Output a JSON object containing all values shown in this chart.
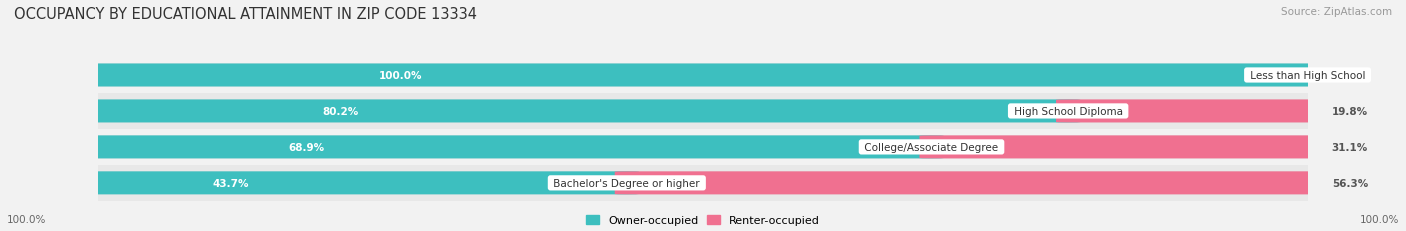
{
  "title": "OCCUPANCY BY EDUCATIONAL ATTAINMENT IN ZIP CODE 13334",
  "source": "Source: ZipAtlas.com",
  "categories": [
    "Less than High School",
    "High School Diploma",
    "College/Associate Degree",
    "Bachelor's Degree or higher"
  ],
  "owner_pct": [
    100.0,
    80.2,
    68.9,
    43.7
  ],
  "renter_pct": [
    0.0,
    19.8,
    31.1,
    56.3
  ],
  "owner_color": "#3DBFBF",
  "renter_color": "#F07090",
  "bar_bg_color": "#E0E0E0",
  "row_bg_even": "#F2F2F2",
  "row_bg_odd": "#E8E8E8",
  "label_bg_color": "#FFFFFF",
  "title_fontsize": 10.5,
  "source_fontsize": 7.5,
  "label_fontsize": 7.5,
  "pct_fontsize": 7.5,
  "legend_fontsize": 8,
  "axis_label_fontsize": 7.5,
  "fig_bg_color": "#F2F2F2",
  "owner_label_color": "#FFFFFF",
  "renter_label_color": "#555555",
  "outside_label_color": "#555555"
}
